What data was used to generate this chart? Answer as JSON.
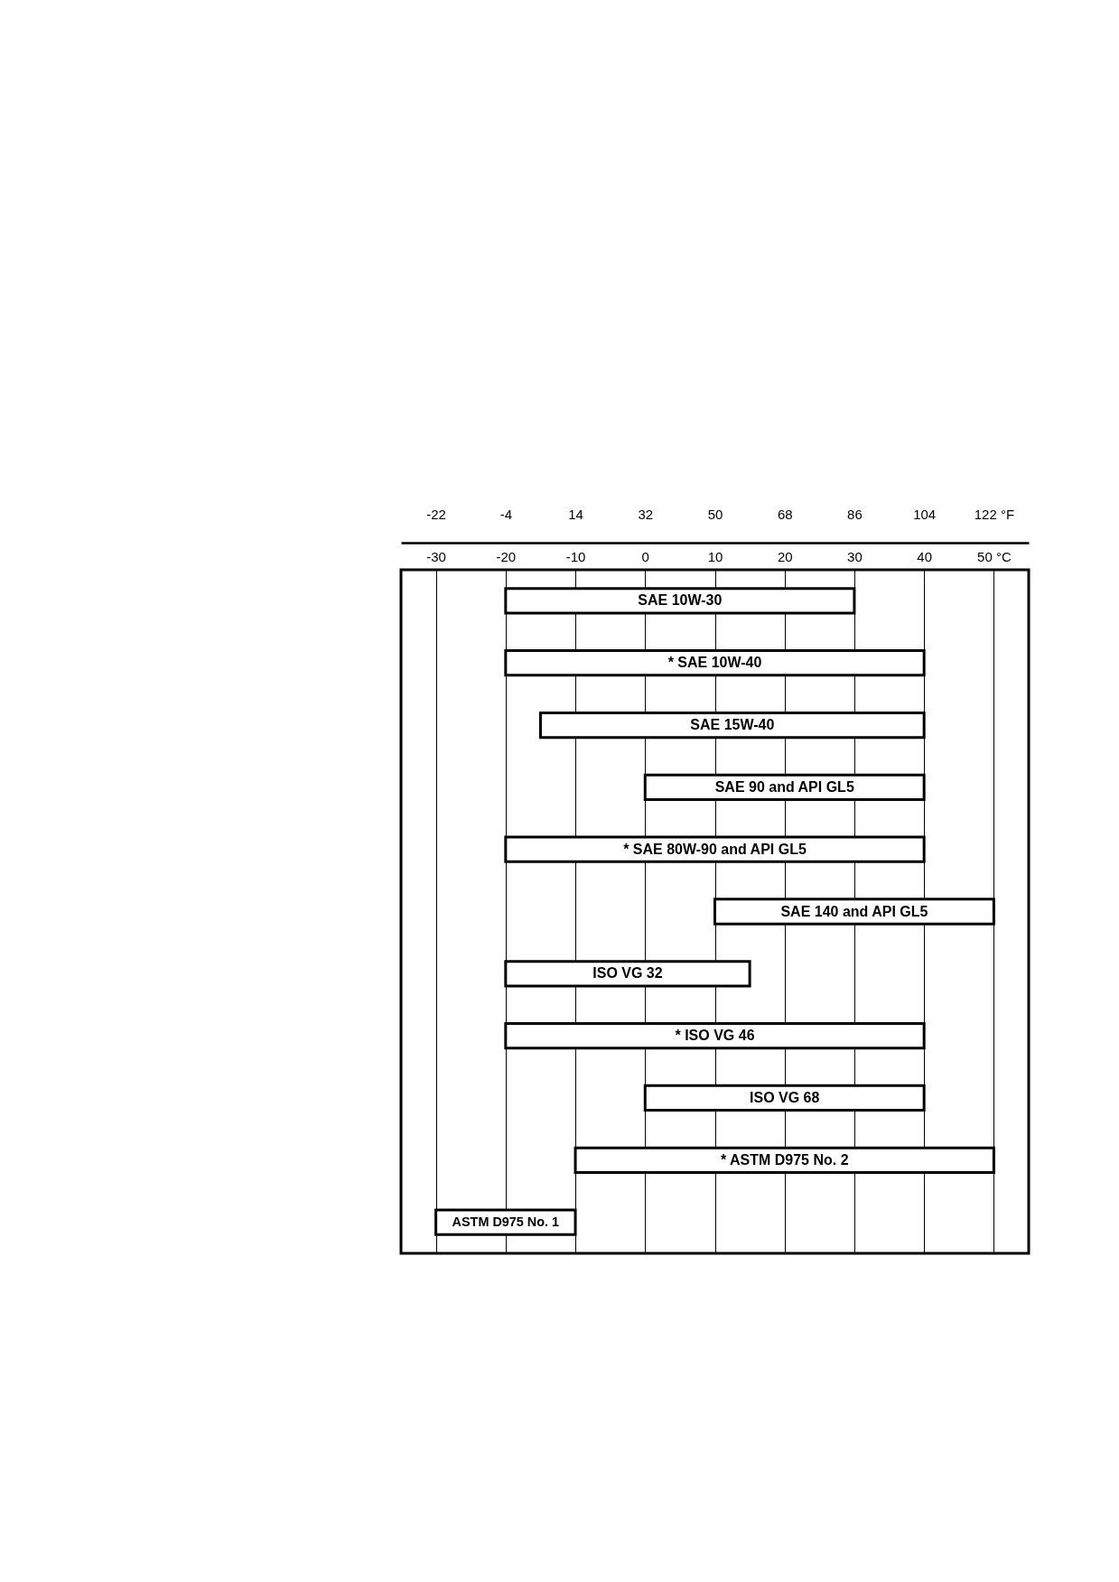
{
  "chart_data": {
    "type": "bar",
    "orientation": "horizontal",
    "categories": [
      "SAE 10W-30",
      "* SAE 10W-40",
      "SAE 15W-40",
      "SAE 90 and API GL5",
      "* SAE 80W-90 and API GL5",
      "SAE 140 and API GL5",
      "ISO VG 32",
      "* ISO VG 46",
      "ISO VG 68",
      "* ASTM D975 No. 2",
      "ASTM D975 No. 1"
    ],
    "base": [
      -20,
      -20,
      -15,
      0,
      -20,
      10,
      -20,
      -20,
      0,
      -10,
      -30
    ],
    "values": [
      50,
      60,
      55,
      40,
      60,
      40,
      35,
      60,
      40,
      60,
      20
    ],
    "color": "#ffffff",
    "xlim": [
      -35,
      55
    ],
    "xticks": [
      -30,
      -20,
      -10,
      0,
      10,
      20,
      30,
      40,
      {
        "value": 50,
        "label": "50 °C"
      }
    ],
    "x2lim": [
      -31,
      131
    ],
    "x2ticks": [
      -22,
      -4,
      14,
      32,
      50,
      68,
      86,
      104,
      {
        "value": 122,
        "label": "122 °F"
      }
    ],
    "grid": "x",
    "tick_labels": "x"
  }
}
